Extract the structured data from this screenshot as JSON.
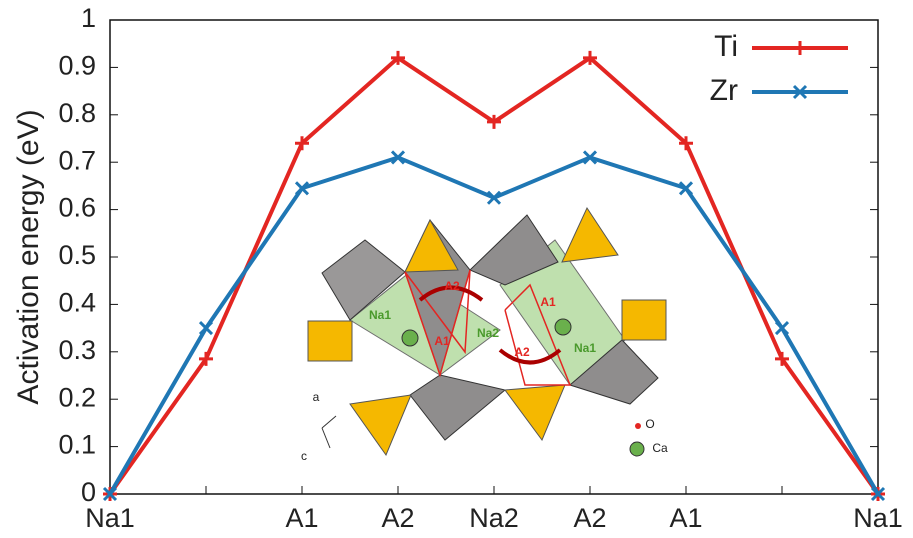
{
  "chart_data": {
    "type": "line",
    "y_label": "Activation energy (eV)",
    "categories": [
      "Na1",
      null,
      "A1",
      "A2",
      "Na2",
      "A2",
      "A1",
      null,
      "Na1"
    ],
    "series": [
      {
        "name": "Ti",
        "color": "#e32622",
        "marker": "plus",
        "values": [
          0,
          0.285,
          0.74,
          0.92,
          0.785,
          0.92,
          0.74,
          0.285,
          0
        ]
      },
      {
        "name": "Zr",
        "color": "#1f77b4",
        "marker": "cross",
        "values": [
          0,
          0.35,
          0.645,
          0.71,
          0.625,
          0.71,
          0.645,
          0.35,
          0
        ]
      }
    ],
    "ylim": [
      0,
      1
    ],
    "yticks": [
      0,
      0.1,
      0.2,
      0.3,
      0.4,
      0.5,
      0.6,
      0.7,
      0.8,
      0.9,
      1
    ],
    "legend": "top-right",
    "inset_labels": [
      "Na1",
      "A2",
      "Na2",
      "A1",
      "A1",
      "A2",
      "Na1",
      "a",
      "c",
      "O",
      "Ca"
    ]
  }
}
